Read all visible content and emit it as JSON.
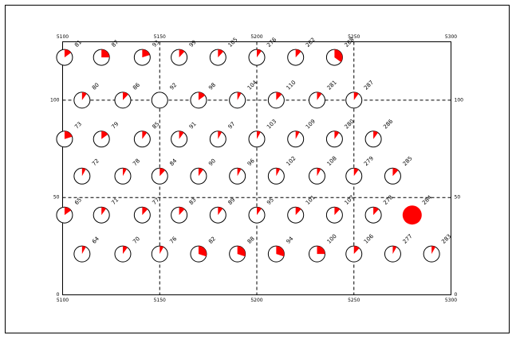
{
  "chart_data": {
    "type": "pie-glyph",
    "xlim": [
      5100,
      5300
    ],
    "ylim": [
      0,
      130
    ],
    "xticks": [
      5100,
      5150,
      5200,
      5250,
      5300
    ],
    "yticks": [
      0,
      50,
      100
    ],
    "grid": true,
    "color": "#ff0000",
    "x": [
      5101,
      5120,
      5141,
      5160,
      5180,
      5200,
      5220,
      5240,
      5110,
      5131,
      5150,
      5170,
      5190,
      5210,
      5231,
      5250,
      5101,
      5120,
      5141,
      5160,
      5180,
      5200,
      5220,
      5240,
      5260,
      5110,
      5131,
      5150,
      5170,
      5190,
      5210,
      5231,
      5250,
      5270,
      5101,
      5120,
      5141,
      5160,
      5180,
      5200,
      5220,
      5240,
      5260,
      5280,
      5110,
      5131,
      5150,
      5170,
      5190,
      5210,
      5231,
      5250,
      5270,
      5290
    ],
    "y": [
      122,
      122,
      122,
      122,
      122,
      122,
      122,
      122,
      100,
      100,
      100,
      100,
      100,
      100,
      100,
      100,
      80,
      80,
      80,
      80,
      80,
      80,
      80,
      80,
      80,
      61,
      61,
      61,
      61,
      61,
      61,
      61,
      61,
      61,
      41,
      41,
      41,
      41,
      41,
      41,
      41,
      41,
      41,
      41,
      21,
      21,
      21,
      21,
      21,
      21,
      21,
      21,
      21,
      21
    ],
    "values": [
      15,
      25,
      20,
      12,
      12,
      10,
      12,
      35,
      10,
      12,
      0,
      15,
      8,
      12,
      10,
      10,
      20,
      15,
      10,
      10,
      8,
      8,
      8,
      10,
      10,
      8,
      8,
      12,
      10,
      8,
      8,
      8,
      10,
      12,
      15,
      10,
      12,
      12,
      10,
      10,
      12,
      12,
      12,
      100,
      8,
      10,
      8,
      30,
      30,
      30,
      25,
      12,
      8,
      8
    ],
    "labels": [
      "81",
      "87",
      "93",
      "99",
      "105",
      "276",
      "282",
      "288",
      "80",
      "86",
      "92",
      "98",
      "104",
      "110",
      "281",
      "287",
      "73",
      "79",
      "85",
      "91",
      "97",
      "103",
      "109",
      "280",
      "286",
      "72",
      "78",
      "84",
      "90",
      "96",
      "102",
      "108",
      "279",
      "285",
      "65",
      "71",
      "77",
      "83",
      "89",
      "95",
      "101",
      "107",
      "278",
      "284",
      "64",
      "70",
      "76",
      "82",
      "88",
      "94",
      "100",
      "106",
      "277",
      "283"
    ]
  }
}
